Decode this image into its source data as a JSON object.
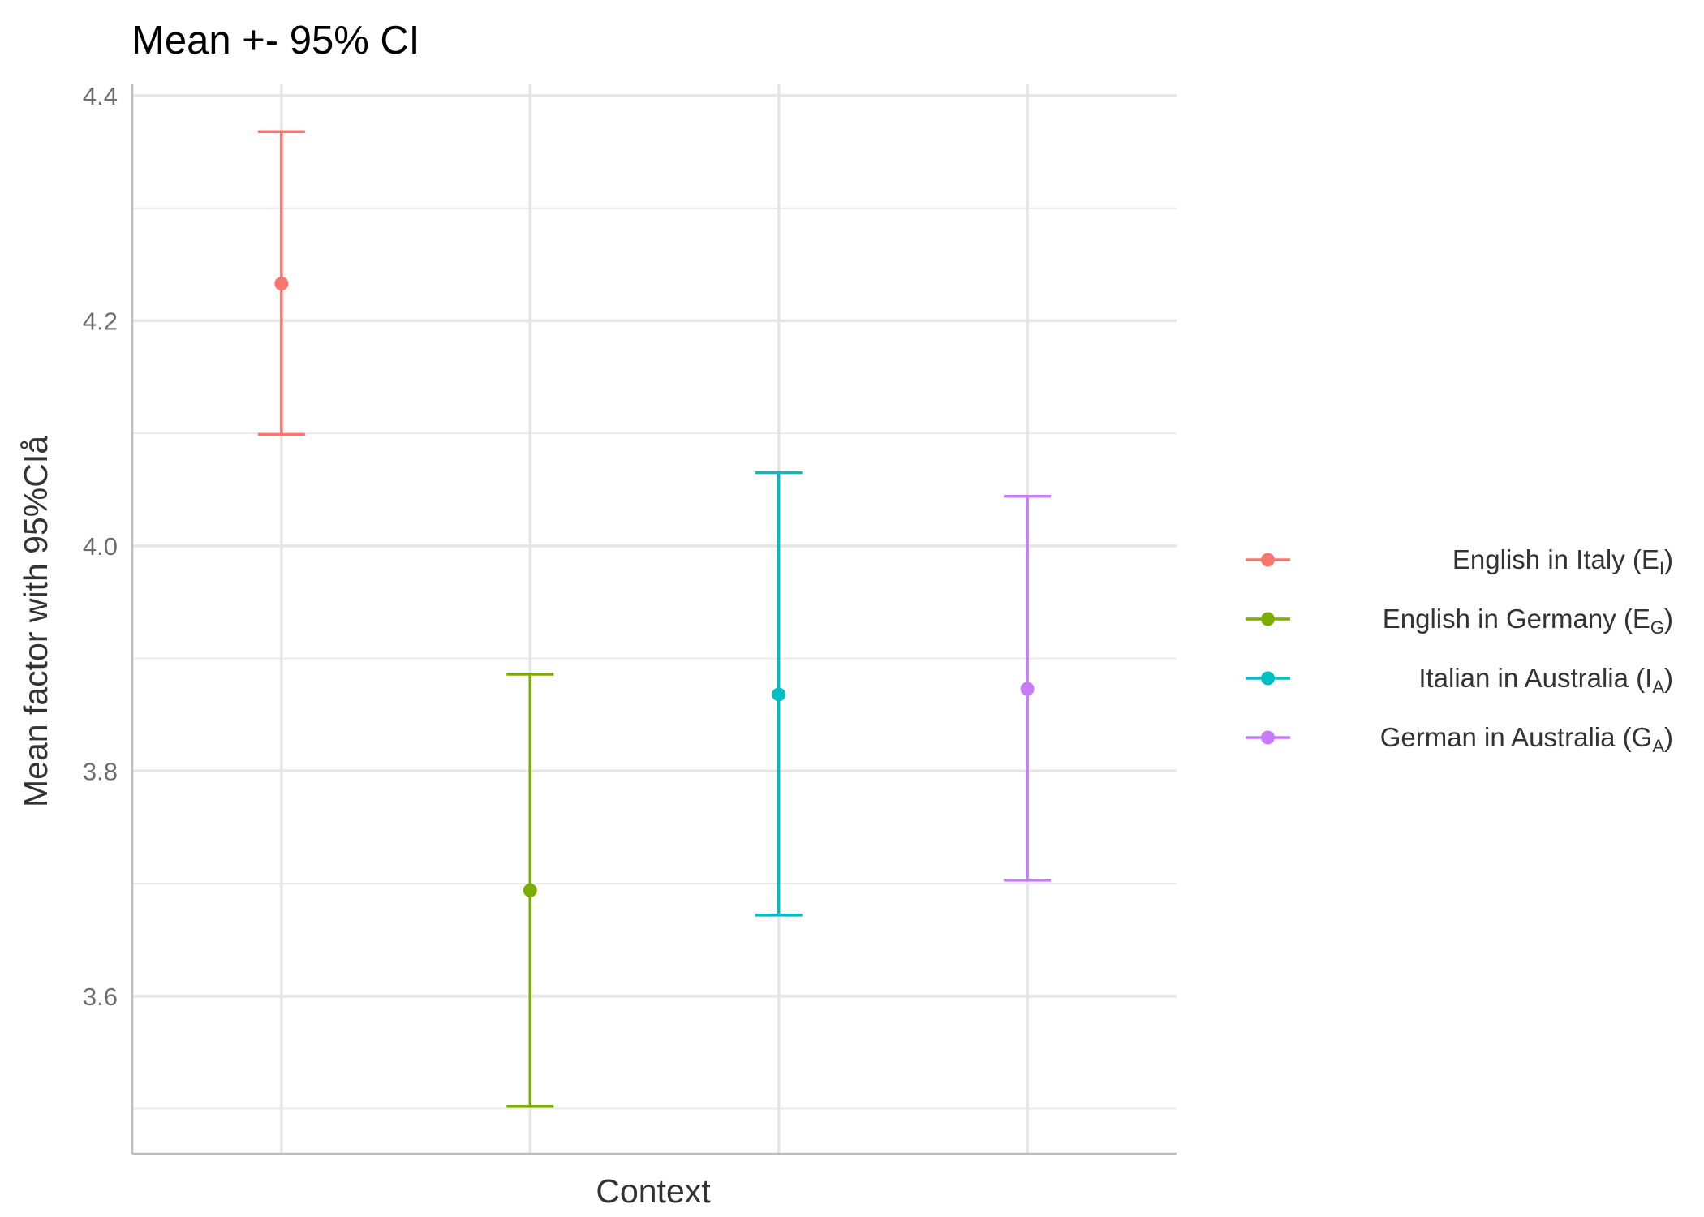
{
  "chart_data": {
    "type": "errorbar",
    "title": "Mean +- 95% CI",
    "xlabel": "Context",
    "ylabel": "Mean factor with 95%CIå",
    "ylim": [
      3.46,
      4.41
    ],
    "yticks": [
      3.6,
      3.8,
      4.0,
      4.2,
      4.4
    ],
    "ytick_labels": [
      "3.6",
      "3.8",
      "4.0",
      "4.2",
      "4.4"
    ],
    "grid": true,
    "legend_position": "right",
    "series": [
      {
        "name": "English in Italy",
        "sym": "E",
        "sub": "I",
        "mean": 4.233,
        "lower": 4.099,
        "upper": 4.368,
        "color": "#F8766D"
      },
      {
        "name": "English in Germany",
        "sym": "E",
        "sub": "G",
        "mean": 3.694,
        "lower": 3.502,
        "upper": 3.886,
        "color": "#7CAE00"
      },
      {
        "name": "Italian in Australia",
        "sym": "I",
        "sub": "A",
        "mean": 3.868,
        "lower": 3.672,
        "upper": 4.065,
        "color": "#00BFC4"
      },
      {
        "name": "German in Australia",
        "sym": "G",
        "sub": "A",
        "mean": 3.873,
        "lower": 3.703,
        "upper": 4.044,
        "color": "#C77CFF"
      }
    ]
  }
}
